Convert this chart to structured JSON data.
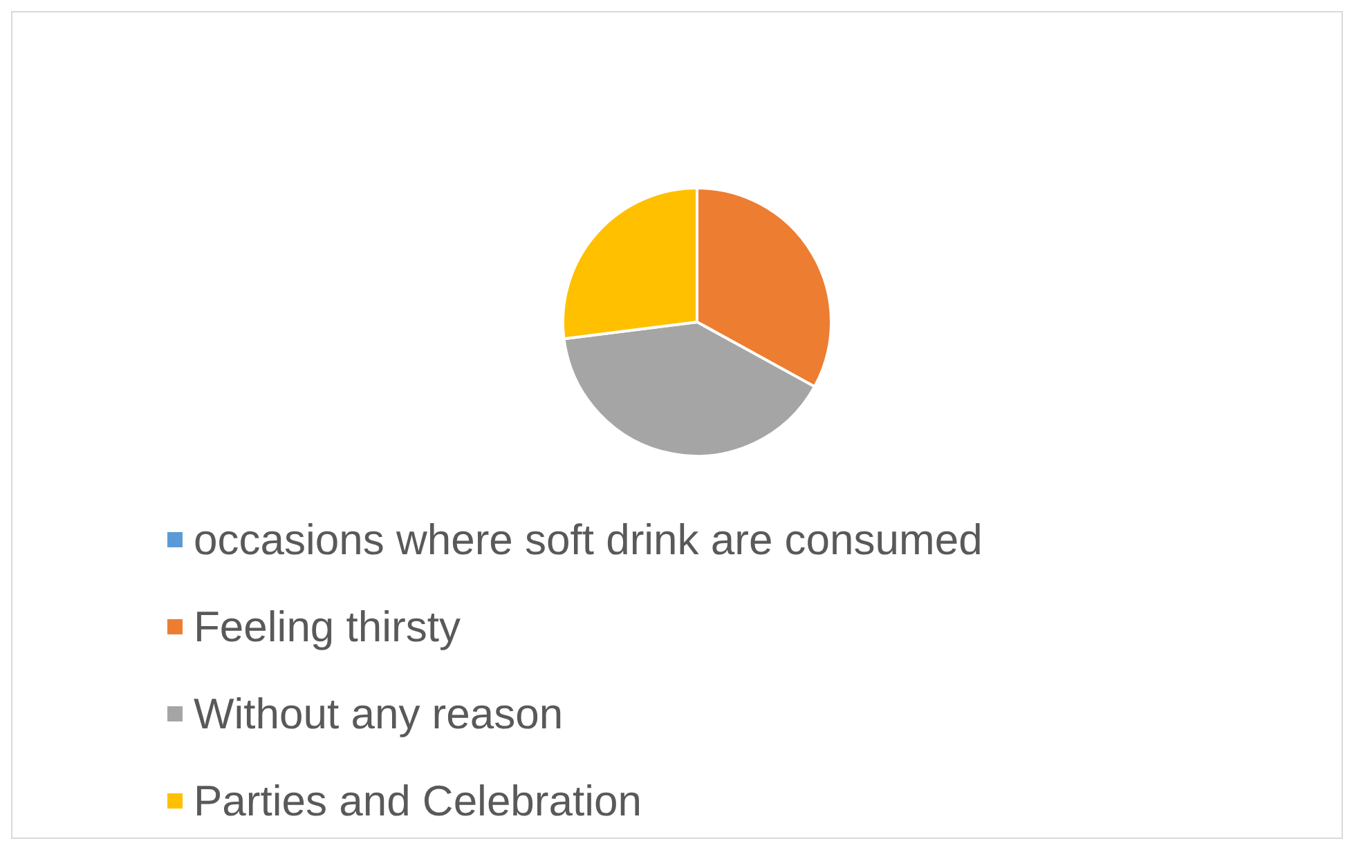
{
  "chart_data": {
    "type": "pie",
    "categories": [
      "occasions where soft drink are consumed",
      "Feeling thirsty",
      "Without any reason",
      "Parties and Celebration"
    ],
    "values": [
      0,
      33,
      40,
      27
    ],
    "colors": [
      "#5b9bd5",
      "#ed7d31",
      "#a5a5a5",
      "#ffc000"
    ],
    "legend": "bottom"
  }
}
